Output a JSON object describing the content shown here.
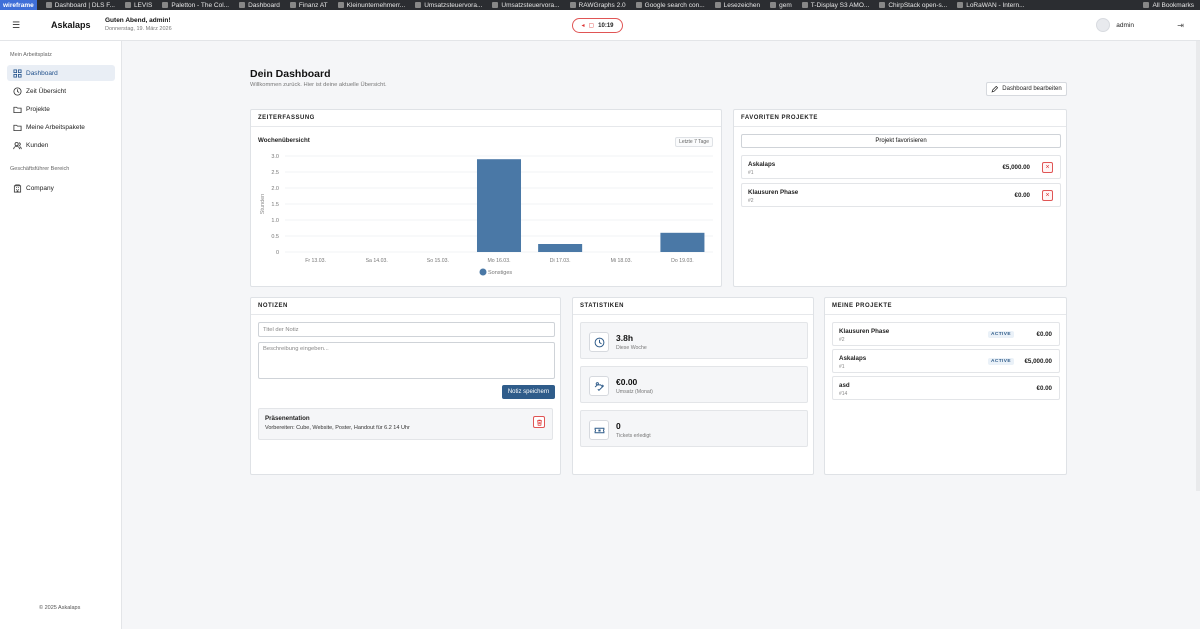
{
  "bookmarks": {
    "items": [
      "wireframe",
      "Dashboard | DLS F...",
      "LEVIS",
      "Paletton - The Col...",
      "Dashboard",
      "Finanz AT",
      "Kleinunternehmerr...",
      "Umsatzsteuervora...",
      "Umsatzsteuervora...",
      "RAWGraphs 2.0",
      "Google search con...",
      "Lesezeichen",
      "gem",
      "T-Display S3 AMO...",
      "ChirpStack open-s...",
      "LoRaWAN - Intern..."
    ],
    "all_label": "All Bookmarks"
  },
  "header": {
    "brand": "Askalaps",
    "greeting": "Guten Abend, admin!",
    "date": "Donnerstag, 19. März 2026",
    "timer": "10:19",
    "user": "admin"
  },
  "sidebar": {
    "section1": "Mein Arbeitsplatz",
    "items": [
      {
        "label": "Dashboard",
        "icon": "grid-icon"
      },
      {
        "label": "Zeit Übersicht",
        "icon": "clock-icon"
      },
      {
        "label": "Projekte",
        "icon": "folder-icon"
      },
      {
        "label": "Meine Arbeitspakete",
        "icon": "folder-icon"
      },
      {
        "label": "Kunden",
        "icon": "users-icon"
      }
    ],
    "section2": "Geschäftsführer Bereich",
    "items2": [
      {
        "label": "Company",
        "icon": "building-icon"
      }
    ],
    "footer": "© 2025 Askalaps"
  },
  "main": {
    "title": "Dein Dashboard",
    "subtitle": "Willkommen zurück. Hier ist deine aktuelle Übersicht.",
    "edit_button": "Dashboard bearbeiten"
  },
  "time_card": {
    "title": "ZEITERFASSUNG",
    "chart_title": "Wochenübersicht",
    "range": "Letzte 7 Tage"
  },
  "chart_data": {
    "type": "bar",
    "categories": [
      "Fr 13.03.",
      "Sa 14.03.",
      "So 15.03.",
      "Mo 16.03.",
      "Di 17.03.",
      "Mi 18.03.",
      "Do 19.03."
    ],
    "series": [
      {
        "name": "Sonstiges",
        "values": [
          0,
          0,
          0,
          2.9,
          0.25,
          0,
          0.6
        ],
        "color": "#4a78a6"
      }
    ],
    "ylabel": "Stunden",
    "yticks": [
      "0",
      "0.5",
      "1.0",
      "1.5",
      "2.0",
      "2.5",
      "3.0"
    ],
    "ylim": [
      0,
      3
    ],
    "grid": true,
    "legend": "bottom"
  },
  "favorites": {
    "title": "FAVORITEN PROJEKTE",
    "button": "Projekt favorisieren",
    "items": [
      {
        "name": "Askalaps",
        "id": "#1",
        "amount": "€5,000.00"
      },
      {
        "name": "Klausuren Phase",
        "id": "#2",
        "amount": "€0.00"
      }
    ]
  },
  "notes": {
    "title": "NOTIZEN",
    "title_placeholder": "Titel der Notiz",
    "desc_placeholder": "Beschreibung eingeben...",
    "save_button": "Notiz speichern",
    "items": [
      {
        "title": "Präsenentation",
        "desc": "Vorbereiten: Cube, Website, Poster, Handout für 6.2 14 Uhr"
      }
    ]
  },
  "stats": {
    "title": "STATISTIKEN",
    "items": [
      {
        "value": "3.8h",
        "label": "Diese Woche",
        "icon": "clock-icon"
      },
      {
        "value": "€0.00",
        "label": "Umsatz (Monat)",
        "icon": "money-icon"
      },
      {
        "value": "0",
        "label": "Tickets erledigt",
        "icon": "ticket-icon"
      }
    ]
  },
  "projects": {
    "title": "MEINE PROJEKTE",
    "items": [
      {
        "name": "Klausuren Phase",
        "id": "#2",
        "status": "ACTIVE",
        "amount": "€0.00"
      },
      {
        "name": "Askalaps",
        "id": "#1",
        "status": "ACTIVE",
        "amount": "€5,000.00"
      },
      {
        "name": "asd",
        "id": "#14",
        "status": "",
        "amount": "€0.00"
      }
    ]
  }
}
